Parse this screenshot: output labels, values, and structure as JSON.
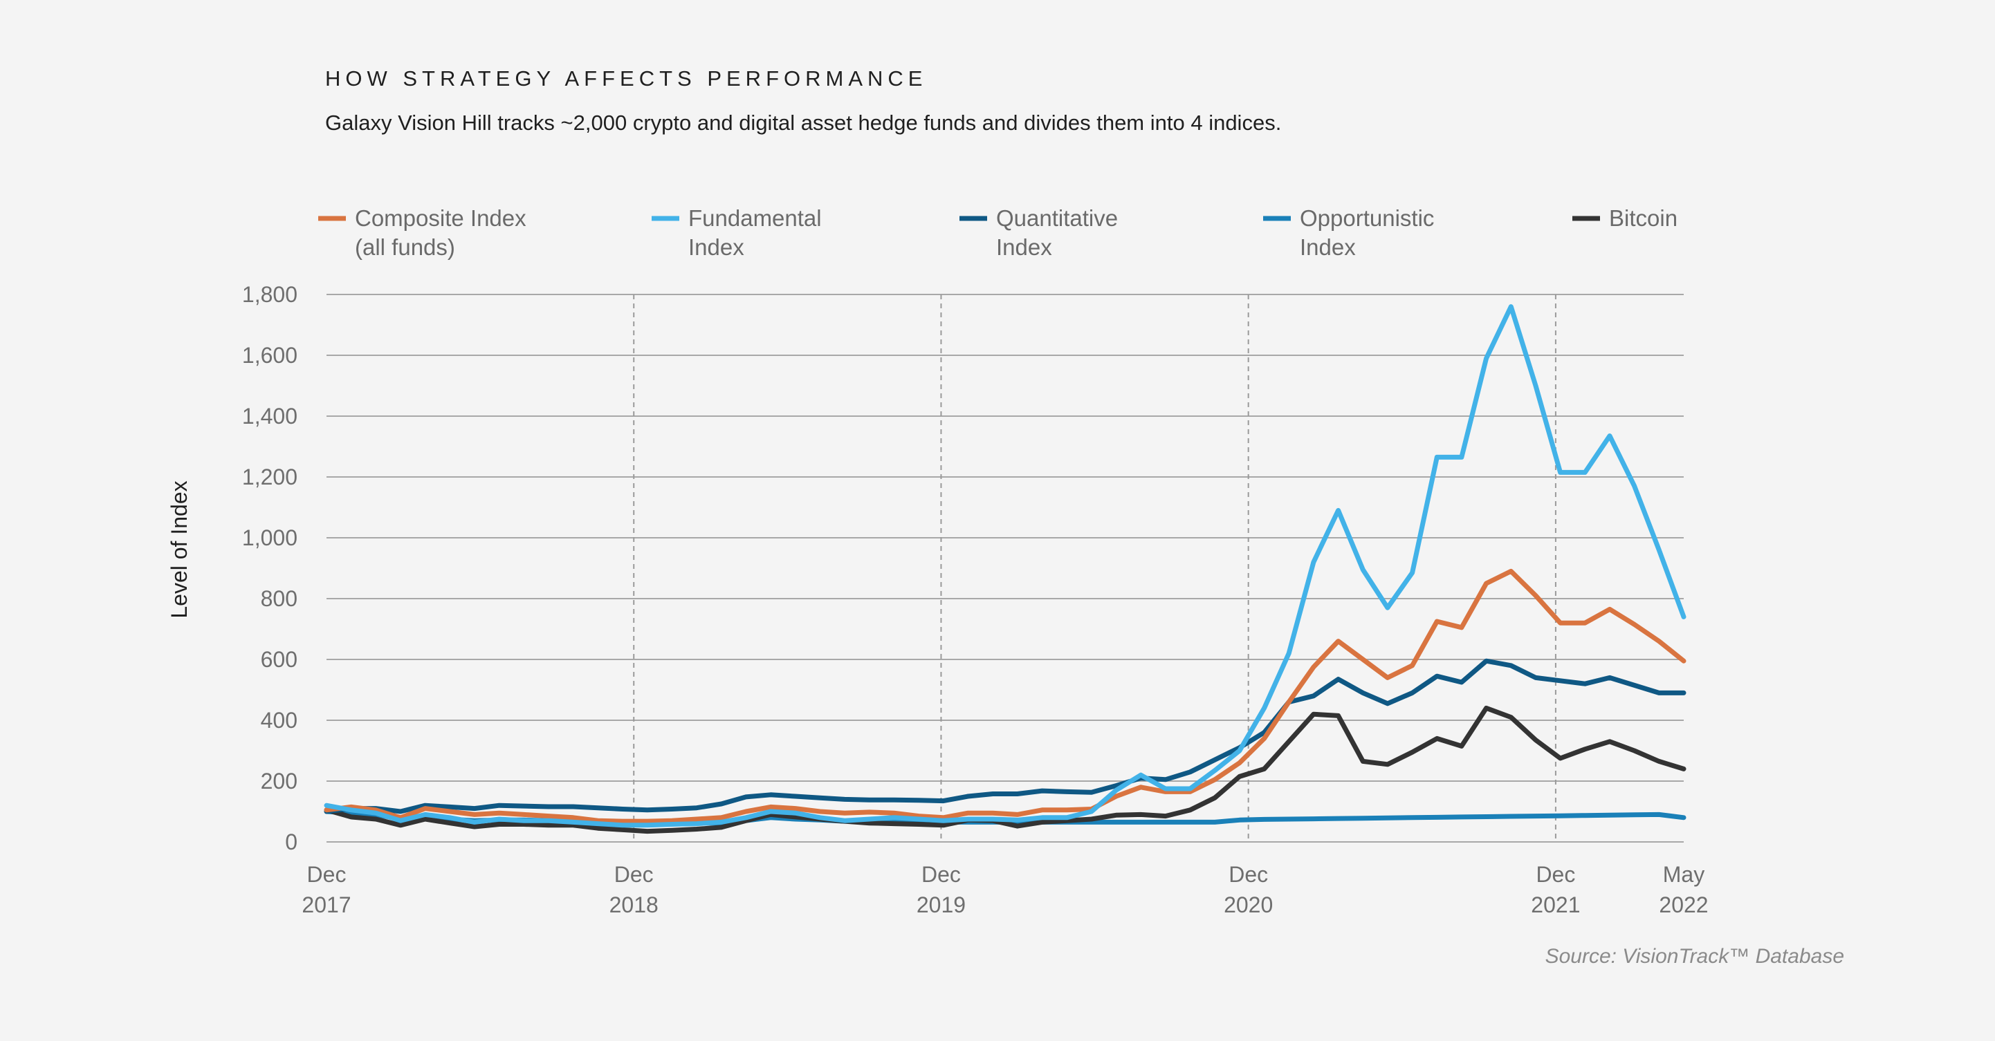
{
  "chart_data": {
    "type": "line",
    "title": "HOW STRATEGY AFFECTS PERFORMANCE",
    "subtitle": "Galaxy Vision Hill tracks ~2,000 crypto and digital asset hedge funds and divides them into 4 indices.",
    "ylabel": "Level of Index",
    "xlabel": "",
    "source": "Source: VisionTrack™ Database",
    "ylim": [
      0,
      1800
    ],
    "y_ticks": [
      "0",
      "200",
      "400",
      "600",
      "800",
      "1,000",
      "1,200",
      "1,400",
      "1,600",
      "1,800"
    ],
    "x_ticks": [
      {
        "month": "Dec",
        "year": "2017"
      },
      {
        "month": "Dec",
        "year": "2018"
      },
      {
        "month": "Dec",
        "year": "2019"
      },
      {
        "month": "Dec",
        "year": "2020"
      },
      {
        "month": "Dec",
        "year": "2021"
      },
      {
        "month": "May",
        "year": "2022"
      }
    ],
    "x_start": "Dec 2017",
    "x_end": "May 2022",
    "grid": "horizontal solid, vertical dashed at each Dec",
    "legend_position": "top",
    "series": [
      {
        "name_lines": [
          "Composite Index",
          "(all funds)"
        ],
        "color": "#d97440",
        "values": [
          105,
          115,
          105,
          80,
          110,
          100,
          90,
          95,
          90,
          85,
          80,
          70,
          68,
          68,
          70,
          75,
          80,
          100,
          115,
          110,
          100,
          95,
          98,
          95,
          85,
          80,
          95,
          95,
          90,
          105,
          105,
          108,
          150,
          180,
          165,
          165,
          205,
          260,
          340,
          460,
          575,
          660,
          600,
          540,
          580,
          725,
          705,
          850,
          890,
          810,
          720,
          720,
          765,
          715,
          660,
          595
        ]
      },
      {
        "name_lines": [
          "Fundamental",
          "Index"
        ],
        "color": "#42b2e8",
        "values": [
          120,
          105,
          95,
          70,
          90,
          80,
          65,
          75,
          70,
          70,
          65,
          60,
          55,
          55,
          58,
          60,
          65,
          80,
          100,
          95,
          80,
          70,
          75,
          80,
          75,
          70,
          75,
          75,
          72,
          80,
          80,
          100,
          170,
          220,
          175,
          175,
          235,
          300,
          440,
          620,
          920,
          1090,
          895,
          770,
          885,
          1265,
          1265,
          1590,
          1760,
          1500,
          1215,
          1215,
          1335,
          1170,
          960,
          740
        ]
      },
      {
        "name_lines": [
          "Quantitative",
          "Index"
        ],
        "color": "#0f5884",
        "values": [
          100,
          110,
          110,
          100,
          120,
          115,
          110,
          120,
          118,
          116,
          116,
          112,
          108,
          105,
          108,
          112,
          125,
          148,
          155,
          150,
          145,
          140,
          138,
          138,
          137,
          135,
          150,
          158,
          158,
          168,
          165,
          163,
          185,
          210,
          205,
          230,
          270,
          310,
          360,
          460,
          480,
          535,
          490,
          455,
          490,
          545,
          525,
          595,
          580,
          540,
          530,
          520,
          540,
          515,
          490,
          490
        ]
      },
      {
        "name_lines": [
          "Opportunistic",
          "Index"
        ],
        "color": "#1a80b8",
        "values": [
          100,
          95,
          90,
          75,
          85,
          75,
          70,
          72,
          72,
          70,
          70,
          62,
          62,
          62,
          62,
          62,
          62,
          70,
          80,
          75,
          72,
          68,
          68,
          66,
          66,
          65,
          65,
          65,
          65,
          65,
          65,
          65,
          65,
          65,
          65,
          65,
          65,
          72,
          74,
          75,
          76,
          77,
          78,
          79,
          80,
          81,
          82,
          83,
          84,
          85,
          86,
          87,
          88,
          89,
          90,
          80
        ]
      },
      {
        "name_lines": [
          "Bitcoin"
        ],
        "color": "#333333",
        "values": [
          105,
          82,
          75,
          55,
          75,
          62,
          50,
          58,
          58,
          55,
          55,
          45,
          40,
          35,
          38,
          42,
          48,
          70,
          90,
          82,
          75,
          68,
          62,
          60,
          58,
          55,
          72,
          70,
          52,
          65,
          70,
          75,
          88,
          90,
          85,
          105,
          145,
          215,
          240,
          330,
          420,
          415,
          265,
          255,
          295,
          340,
          315,
          440,
          410,
          335,
          275,
          305,
          330,
          300,
          265,
          240
        ]
      }
    ]
  }
}
